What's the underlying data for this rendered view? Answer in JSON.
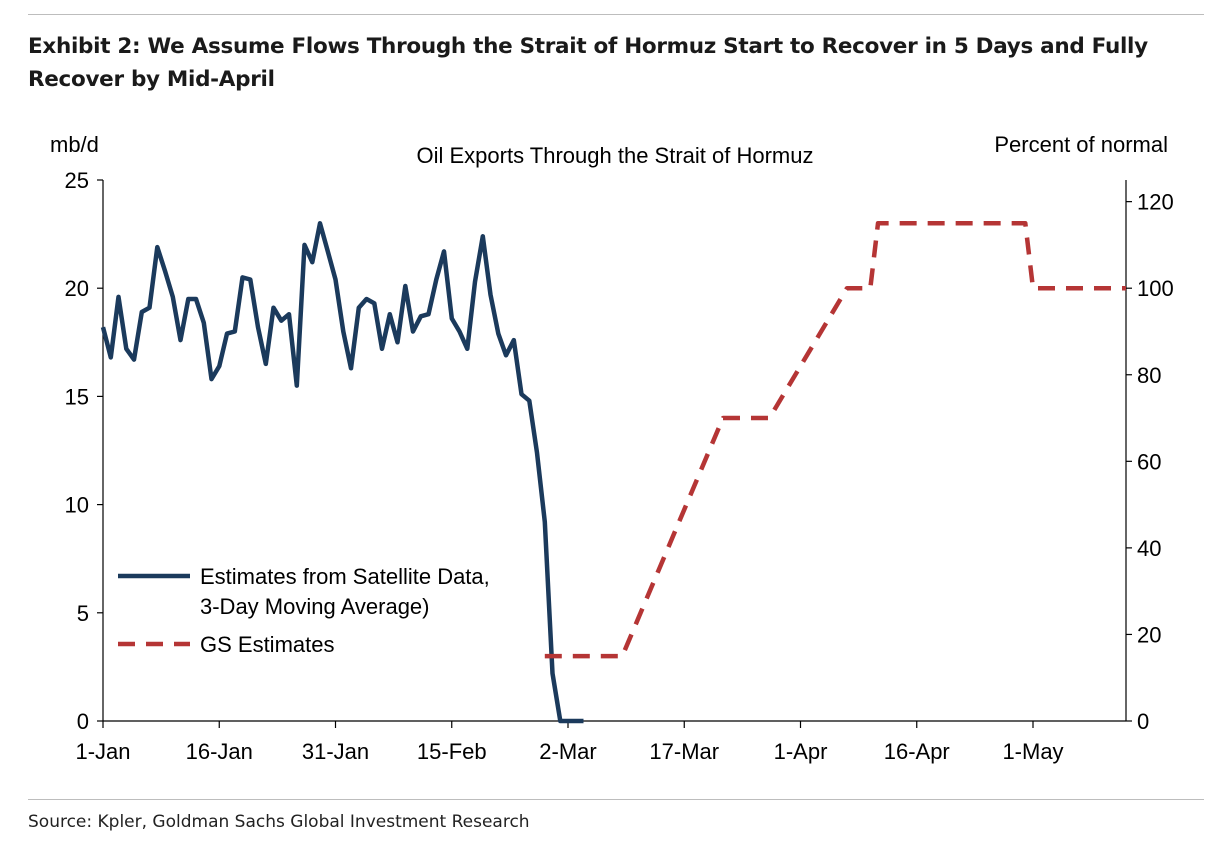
{
  "exhibit": {
    "title": "Exhibit 2: We Assume Flows Through the Strait of Hormuz Start to Recover in 5 Days and Fully Recover by Mid-April",
    "source": "Source: Kpler, Goldman Sachs Global Investment Research"
  },
  "chart_data": {
    "type": "line",
    "title": "Oil Exports Through the Strait of Hormuz",
    "ylabel_left": "mb/d",
    "ylabel_right": "Percent of normal",
    "ylim_left": [
      0,
      25
    ],
    "ylim_right": [
      0,
      125
    ],
    "yticks_left": [
      0,
      5,
      10,
      15,
      20,
      25
    ],
    "yticks_right": [
      0,
      20,
      40,
      60,
      80,
      100,
      120
    ],
    "xlim": [
      0,
      132
    ],
    "xticks": [
      {
        "day": 0,
        "label": "1-Jan"
      },
      {
        "day": 15,
        "label": "16-Jan"
      },
      {
        "day": 30,
        "label": "31-Jan"
      },
      {
        "day": 45,
        "label": "15-Feb"
      },
      {
        "day": 60,
        "label": "2-Mar"
      },
      {
        "day": 75,
        "label": "17-Mar"
      },
      {
        "day": 90,
        "label": "1-Apr"
      },
      {
        "day": 105,
        "label": "16-Apr"
      },
      {
        "day": 120,
        "label": "1-May"
      }
    ],
    "x_unit": "days since 1-Jan",
    "series": [
      {
        "name": "Estimates from Satellite Data, 3-Day Moving Average)",
        "legend_lines": [
          "Estimates from Satellite Data,",
          "3-Day Moving Average)"
        ],
        "axis": "left",
        "style": "solid",
        "color": "#1b3a5c",
        "x": [
          0,
          1,
          2,
          3,
          4,
          5,
          6,
          7,
          8,
          9,
          10,
          11,
          12,
          13,
          14,
          15,
          16,
          17,
          18,
          19,
          20,
          21,
          22,
          23,
          24,
          25,
          26,
          27,
          28,
          29,
          30,
          31,
          32,
          33,
          34,
          35,
          36,
          37,
          38,
          39,
          40,
          41,
          42,
          43,
          44,
          45,
          46,
          47,
          48,
          49,
          50,
          51,
          52,
          53,
          54,
          55,
          56,
          57,
          58,
          59,
          60,
          61,
          62
        ],
        "y": [
          18.2,
          16.8,
          19.6,
          17.2,
          16.7,
          18.9,
          19.1,
          21.9,
          20.8,
          19.6,
          17.6,
          19.5,
          19.5,
          18.4,
          15.8,
          16.4,
          17.9,
          18.0,
          20.5,
          20.4,
          18.2,
          16.5,
          19.1,
          18.5,
          18.8,
          15.5,
          22.0,
          21.2,
          23.0,
          21.7,
          20.4,
          18.0,
          16.3,
          19.1,
          19.5,
          19.3,
          17.2,
          18.8,
          17.5,
          20.1,
          18.0,
          18.7,
          18.8,
          20.4,
          21.7,
          18.6,
          18.0,
          17.2,
          20.3,
          22.4,
          19.7,
          17.9,
          16.9,
          17.6,
          15.1,
          14.8,
          12.4,
          9.2,
          2.2,
          0.0,
          0.0,
          0.0,
          0.0
        ]
      },
      {
        "name": "GS Estimates",
        "axis": "right",
        "style": "dashed",
        "color": "#b53535",
        "x": [
          57,
          63,
          67,
          80,
          86,
          96,
          99,
          100,
          119,
          120,
          132
        ],
        "y": [
          15,
          15,
          15,
          70,
          70,
          100,
          100,
          115,
          115,
          100,
          100
        ]
      }
    ],
    "legend_position": "lower-left",
    "grid": false
  }
}
